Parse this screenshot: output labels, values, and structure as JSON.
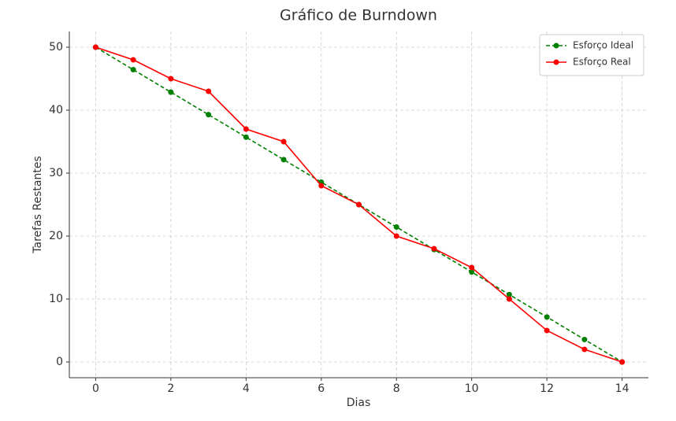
{
  "chart_data": {
    "type": "line",
    "title": "Gráfico de Burndown",
    "x_label": "Dias",
    "y_label": "Tarefas Restantes",
    "x": [
      0,
      1,
      2,
      3,
      4,
      5,
      6,
      7,
      8,
      9,
      10,
      11,
      12,
      13,
      14
    ],
    "series": [
      {
        "name": "Esforço Ideal",
        "color": "#008000",
        "dashed": true,
        "values": [
          50,
          46.43,
          42.86,
          39.29,
          35.71,
          32.14,
          28.57,
          25,
          21.43,
          17.86,
          14.29,
          10.71,
          7.14,
          3.57,
          0
        ]
      },
      {
        "name": "Esforço Real",
        "color": "#ff0000",
        "dashed": false,
        "values": [
          50,
          48,
          45,
          43,
          37,
          35,
          28,
          25,
          20,
          18,
          15,
          10,
          5,
          2,
          0
        ]
      }
    ],
    "xlim": [
      -0.7,
      14.7
    ],
    "xticks": [
      0,
      2,
      4,
      6,
      8,
      10,
      12,
      14
    ],
    "ylim": [
      -2.5,
      52.5
    ],
    "yticks": [
      0,
      10,
      20,
      30,
      40,
      50
    ],
    "grid": true,
    "legend": "upper right"
  }
}
